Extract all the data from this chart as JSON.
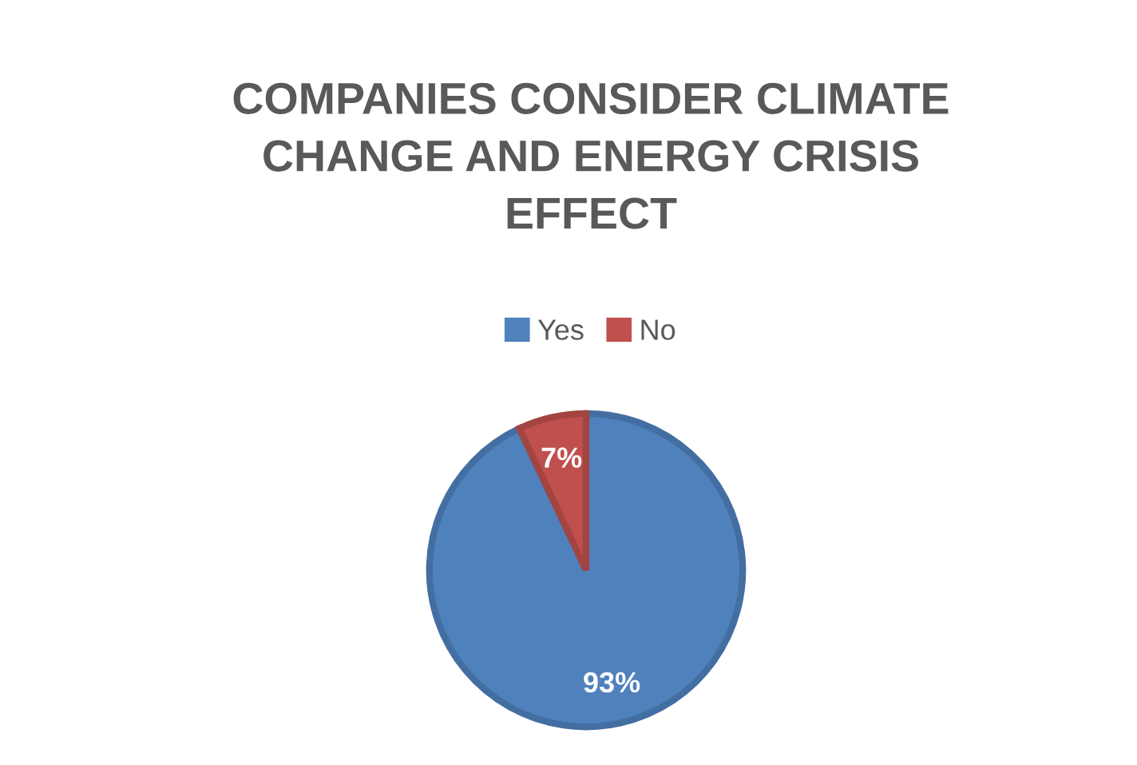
{
  "chart_data": {
    "type": "pie",
    "title": "COMPANIES CONSIDER CLIMATE CHANGE AND ENERGY CRISIS EFFECT",
    "categories": [
      "Yes",
      "No"
    ],
    "values": [
      93,
      7
    ],
    "colors": [
      "#4f81bd",
      "#c0504d"
    ],
    "value_labels": [
      "93%",
      "7%"
    ],
    "legend": "top"
  }
}
